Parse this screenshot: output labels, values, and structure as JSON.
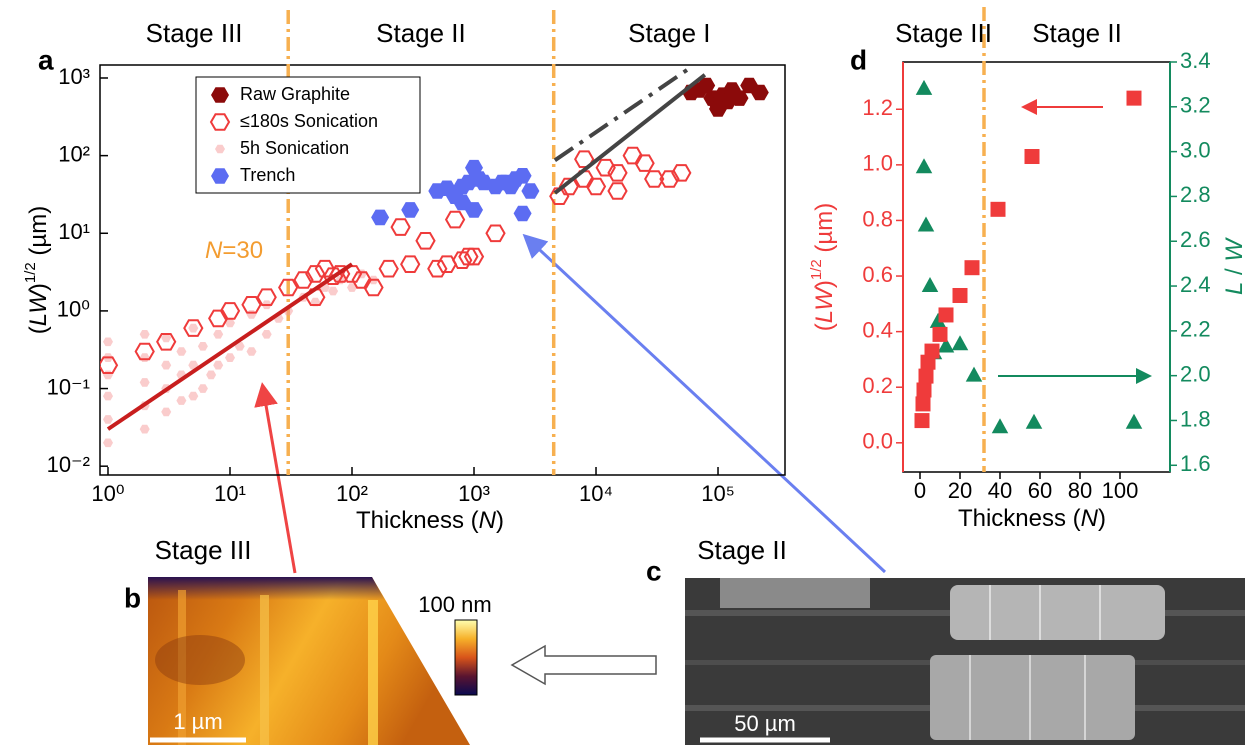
{
  "chart_data": [
    {
      "type": "scatter",
      "xlabel": [
        "Thickness (",
        "N",
        ")"
      ],
      "ylabel": [
        "(",
        "LW",
        ")",
        "1/2",
        " (µm)"
      ],
      "annotation": [
        "N",
        "=30"
      ],
      "stage_labels": [
        "Stage III",
        "Stage II",
        "Stage I"
      ],
      "xlog": true,
      "ylog": true,
      "xlim": [
        0.86,
        354000
      ],
      "ylim": [
        0.0077,
        1470
      ],
      "xticks": [
        {
          "value": 1,
          "label": "10⁰"
        },
        {
          "value": 10,
          "label": "10¹"
        },
        {
          "value": 100,
          "label": "10²"
        },
        {
          "value": 1000,
          "label": "10³"
        },
        {
          "value": 10000,
          "label": "10⁴"
        },
        {
          "value": 100000,
          "label": "10⁵"
        }
      ],
      "yticks": [
        {
          "value": 0.01,
          "label": "10⁻²"
        },
        {
          "value": 0.1,
          "label": "10⁻¹"
        },
        {
          "value": 1,
          "label": "10⁰"
        },
        {
          "value": 10,
          "label": "10¹"
        },
        {
          "value": 100,
          "label": "10²"
        },
        {
          "value": 1000,
          "label": "10³"
        }
      ],
      "vlines": [
        30,
        4500
      ],
      "vline_color": "#f7b050",
      "legend": "upper left",
      "series": [
        {
          "name": "Raw Graphite",
          "color": "#8b0a0a",
          "marker": "hexagon",
          "filled": true,
          "opacity": 1,
          "x": [
            60000,
            70000,
            80000,
            90000,
            100000,
            110000,
            120000,
            130000,
            150000,
            180000,
            100000,
            220000
          ],
          "values": [
            650,
            700,
            800,
            550,
            450,
            600,
            500,
            700,
            550,
            800,
            400,
            650
          ]
        },
        {
          "name": "≤180s Sonication",
          "color": "#ef3b3b",
          "marker": "hexagon",
          "filled": false,
          "opacity": 1,
          "x": [
            1,
            2,
            3,
            5,
            8,
            10,
            15,
            20,
            30,
            40,
            50,
            50,
            60,
            70,
            80,
            100,
            120,
            150,
            200,
            250,
            300,
            400,
            500,
            600,
            700,
            800,
            900,
            1000,
            1500,
            5000,
            6000,
            8000,
            10000,
            12000,
            15000,
            20000,
            25000,
            30000,
            40000,
            50000,
            15000,
            8000
          ],
          "values": [
            0.2,
            0.3,
            0.4,
            0.6,
            0.8,
            1.0,
            1.2,
            1.5,
            2.0,
            2.5,
            3.0,
            1.5,
            3.5,
            2.8,
            3.0,
            3.0,
            2.5,
            2.0,
            3.5,
            12,
            4,
            8,
            3.5,
            4,
            15,
            4.5,
            5,
            5,
            10,
            30,
            40,
            50,
            40,
            70,
            60,
            100,
            80,
            50,
            50,
            60,
            35,
            90
          ]
        },
        {
          "name": "5h Sonication",
          "color": "#f59a9a",
          "marker": "hexagon",
          "filled": true,
          "opacity": 0.5,
          "x": [
            1,
            1,
            1,
            1,
            1,
            1,
            2,
            2,
            2,
            2,
            2,
            3,
            3,
            3,
            3,
            4,
            4,
            4,
            5,
            5,
            5,
            6,
            6,
            7,
            8,
            8,
            10,
            10,
            12,
            15,
            15,
            20,
            20,
            25,
            30,
            40,
            50,
            60,
            70,
            80,
            100,
            120,
            150
          ],
          "values": [
            0.02,
            0.04,
            0.08,
            0.15,
            0.25,
            0.4,
            0.03,
            0.06,
            0.12,
            0.25,
            0.5,
            0.05,
            0.1,
            0.2,
            0.45,
            0.07,
            0.15,
            0.3,
            0.08,
            0.2,
            0.6,
            0.1,
            0.35,
            0.15,
            0.2,
            0.5,
            0.25,
            0.7,
            0.35,
            0.3,
            0.9,
            0.5,
            1.2,
            0.8,
            1.0,
            1.5,
            1.3,
            2.0,
            1.8,
            2.5,
            2.0,
            3.0,
            2.5
          ]
        },
        {
          "name": "Trench",
          "color": "#5c6cf2",
          "marker": "hexagon",
          "filled": true,
          "opacity": 1,
          "x": [
            170,
            300,
            500,
            600,
            700,
            800,
            900,
            1000,
            1100,
            1200,
            1500,
            1700,
            2000,
            2200,
            2500,
            2900,
            800,
            1000,
            2500,
            1800
          ],
          "values": [
            16,
            20,
            35,
            38,
            30,
            40,
            45,
            70,
            50,
            45,
            40,
            45,
            40,
            50,
            55,
            35,
            25,
            20,
            18,
            45
          ]
        }
      ],
      "fit_lines": [
        {
          "color": "#c81e1e",
          "dash": "solid",
          "x": [
            1,
            100
          ],
          "values": [
            0.03,
            4
          ]
        },
        {
          "color": "#444444",
          "dash": "dashdot",
          "x": [
            4600,
            59000
          ],
          "values": [
            87,
            1350
          ]
        },
        {
          "color": "#444444",
          "dash": "solid",
          "x": [
            4600,
            78000
          ],
          "values": [
            33,
            1100
          ]
        }
      ]
    },
    {
      "type": "scatter",
      "xlabel": [
        "Thickness (",
        "N",
        ")"
      ],
      "ylabel": [
        "(",
        "LW",
        ")",
        "1/2",
        " (µm)"
      ],
      "y2label": [
        "L",
        " / ",
        "W"
      ],
      "stage_labels": [
        "Stage III",
        "Stage II"
      ],
      "xlim": [
        -8.5,
        125
      ],
      "ylim": [
        -0.105,
        1.37
      ],
      "y2lim": [
        1.57,
        3.4
      ],
      "xticks": [
        0,
        20,
        40,
        60,
        80,
        100
      ],
      "yticks": [
        {
          "value": 0,
          "label": "0.0"
        },
        0.2,
        0.4,
        0.6,
        0.8,
        {
          "value": 1,
          "label": "1.0"
        },
        1.2
      ],
      "y2ticks": [
        1.6,
        1.8,
        {
          "value": 2,
          "label": "2.0"
        },
        2.2,
        2.4,
        2.6,
        2.8,
        {
          "value": 3,
          "label": "3.0"
        },
        3.2,
        3.4
      ],
      "ycolor": "#ef3b3b",
      "y2color": "#138a5e",
      "vlines": [
        32
      ],
      "vline_color": "#f7b050",
      "series": [
        {
          "color": "#ef3b3b",
          "marker": "square",
          "filled": true,
          "opacity": 1,
          "x": [
            1,
            1.5,
            2,
            3,
            4,
            6,
            10,
            13,
            20,
            26,
            39,
            56,
            107
          ],
          "values": [
            0.08,
            0.14,
            0.19,
            0.24,
            0.29,
            0.33,
            0.39,
            0.46,
            0.53,
            0.63,
            0.84,
            1.03,
            1.24
          ]
        },
        {
          "color": "#138a5e",
          "marker": "triangle",
          "filled": true,
          "opacity": 1,
          "axis": "y2",
          "x": [
            2,
            2,
            3,
            5,
            9,
            7,
            13,
            20,
            27,
            40,
            57,
            107
          ],
          "values": [
            3.28,
            2.93,
            2.67,
            2.4,
            2.24,
            2.1,
            2.13,
            2.14,
            2.0,
            1.77,
            1.79,
            1.79
          ]
        }
      ]
    }
  ],
  "figure": {
    "panel_labels": [
      "a",
      "b",
      "c",
      "d"
    ],
    "panel_b": {
      "title": "Stage III",
      "colorbar_label": "100 nm",
      "scale_bar": "1 µm"
    },
    "panel_c": {
      "title": "Stage II",
      "scale_bar": "50 µm"
    }
  }
}
